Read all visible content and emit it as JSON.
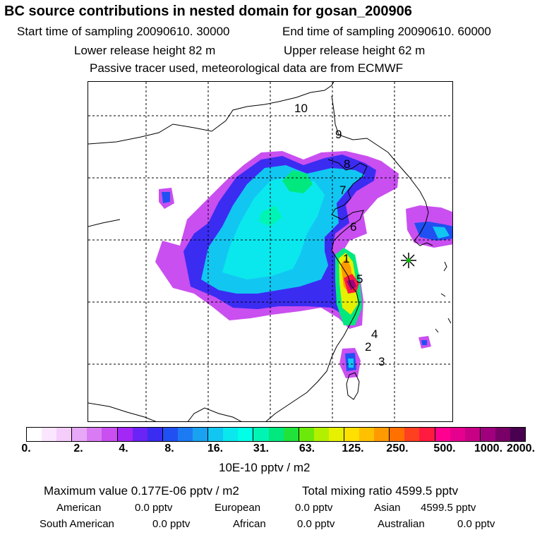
{
  "header": {
    "title": "BC  source contributions in nested domain for gosan_200906",
    "start_time": "Start time of sampling 20090610. 30000",
    "end_time": "End time of sampling 20090610. 60000",
    "lower_height": "Lower release height   82 m",
    "upper_height": "Upper release height   62 m",
    "tracer_note": "Passive tracer used, meteorological data are from ECMWF"
  },
  "map": {
    "labels": [
      "10",
      "9",
      "8",
      "7",
      "6",
      "1",
      "5",
      "4",
      "2",
      "3"
    ],
    "receptor": "gosan-site-marker"
  },
  "legend": {
    "ticks": [
      "0.",
      "2.",
      "4.",
      "8.",
      "16.",
      "31.",
      "63.",
      "125.",
      "250.",
      "500.",
      "1000.",
      "2000."
    ],
    "units": "10E-10 pptv / m2",
    "colors": [
      "#ffffff",
      "#fbe6ff",
      "#f4cdfb",
      "#e7a9f7",
      "#d97bf2",
      "#c94ff0",
      "#a327f5",
      "#6a24f5",
      "#3b2cf2",
      "#2050f2",
      "#1c7bf2",
      "#1aa2f2",
      "#12c6f2",
      "#0ae8ee",
      "#00ffe6",
      "#00f5b5",
      "#00e87e",
      "#20e23a",
      "#6ce90a",
      "#b3f000",
      "#e6f000",
      "#ffe000",
      "#ffc000",
      "#ff9a00",
      "#ff7000",
      "#ff4020",
      "#ff1a40",
      "#ff0090",
      "#e5008f",
      "#c70086",
      "#a0007e",
      "#780066",
      "#4a0050"
    ]
  },
  "stats": {
    "max_label": "Maximum value  0.177E-06 pptv / m2",
    "total_label": "Total mixing ratio     4599.5 pptv",
    "american": "American",
    "american_val": "0.0 pptv",
    "european": "European",
    "european_val": "0.0 pptv",
    "asian": "Asian",
    "asian_val": "4599.5 pptv",
    "south_american": "South American",
    "south_american_val": "0.0 pptv",
    "african": "African",
    "african_val": "0.0 pptv",
    "australian": "Australian",
    "australian_val": "0.0 pptv"
  }
}
